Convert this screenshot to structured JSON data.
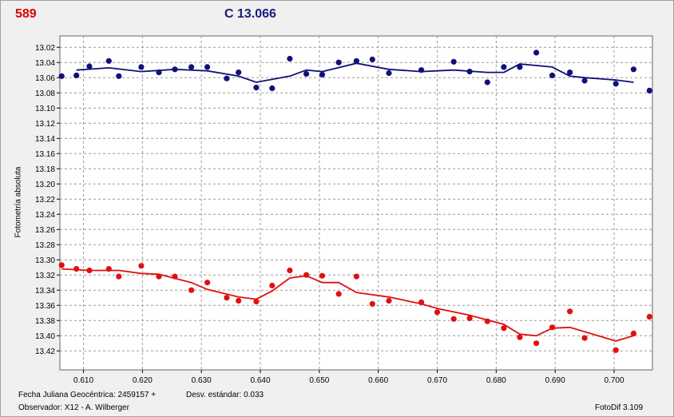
{
  "header": {
    "left_label": "589",
    "center_label": "C 13.066"
  },
  "footer": {
    "jd_label": "Fecha Juliana Geocéntrica: 2459157 +",
    "std_label": "Desv. estándar: 0.033",
    "observer": "Observador: X12 - A. Wilberger",
    "software": "FotoDif 3.109"
  },
  "colors": {
    "red": "#e01010",
    "blue": "#10107a",
    "grid": "#9a9a9a",
    "plot_bg": "#ffffff"
  },
  "chart_data": {
    "type": "scatter",
    "title": "",
    "xlabel": "",
    "ylabel": "Fotometría absoluta",
    "xlim": [
      0.606,
      0.7065
    ],
    "ylim": [
      13.005,
      13.445
    ],
    "y_inverted": true,
    "grid": true,
    "x_ticks": [
      0.61,
      0.62,
      0.63,
      0.64,
      0.65,
      0.66,
      0.67,
      0.68,
      0.69,
      0.7
    ],
    "y_ticks": [
      13.02,
      13.04,
      13.06,
      13.08,
      13.1,
      13.12,
      13.14,
      13.16,
      13.18,
      13.2,
      13.22,
      13.24,
      13.26,
      13.28,
      13.3,
      13.32,
      13.34,
      13.36,
      13.38,
      13.4,
      13.42
    ],
    "series": [
      {
        "color": "#10107a",
        "points": [
          [
            0.6063,
            13.058
          ],
          [
            0.6088,
            13.057
          ],
          [
            0.611,
            13.045
          ],
          [
            0.6143,
            13.038
          ],
          [
            0.616,
            13.058
          ],
          [
            0.6198,
            13.046
          ],
          [
            0.6228,
            13.053
          ],
          [
            0.6255,
            13.049
          ],
          [
            0.6283,
            13.046
          ],
          [
            0.631,
            13.046
          ],
          [
            0.6343,
            13.061
          ],
          [
            0.6363,
            13.053
          ],
          [
            0.6393,
            13.073
          ],
          [
            0.642,
            13.074
          ],
          [
            0.645,
            13.035
          ],
          [
            0.6478,
            13.055
          ],
          [
            0.6505,
            13.056
          ],
          [
            0.6533,
            13.04
          ],
          [
            0.6563,
            13.038
          ],
          [
            0.659,
            13.036
          ],
          [
            0.6618,
            13.054
          ],
          [
            0.6673,
            13.05
          ],
          [
            0.6728,
            13.039
          ],
          [
            0.6755,
            13.052
          ],
          [
            0.6785,
            13.066
          ],
          [
            0.6813,
            13.046
          ],
          [
            0.684,
            13.046
          ],
          [
            0.6868,
            13.027
          ],
          [
            0.6895,
            13.057
          ],
          [
            0.6925,
            13.053
          ],
          [
            0.695,
            13.064
          ],
          [
            0.7003,
            13.068
          ],
          [
            0.7033,
            13.049
          ],
          [
            0.706,
            13.077
          ]
        ],
        "trend": [
          [
            0.6088,
            13.05
          ],
          [
            0.6143,
            13.047
          ],
          [
            0.6198,
            13.052
          ],
          [
            0.6255,
            13.049
          ],
          [
            0.631,
            13.051
          ],
          [
            0.6363,
            13.058
          ],
          [
            0.6393,
            13.066
          ],
          [
            0.645,
            13.058
          ],
          [
            0.6478,
            13.05
          ],
          [
            0.6505,
            13.052
          ],
          [
            0.6563,
            13.041
          ],
          [
            0.6618,
            13.049
          ],
          [
            0.6673,
            13.052
          ],
          [
            0.6728,
            13.05
          ],
          [
            0.6785,
            13.053
          ],
          [
            0.6813,
            13.053
          ],
          [
            0.684,
            13.042
          ],
          [
            0.6895,
            13.046
          ],
          [
            0.6925,
            13.058
          ],
          [
            0.695,
            13.06
          ],
          [
            0.7003,
            13.063
          ],
          [
            0.7033,
            13.066
          ]
        ]
      },
      {
        "color": "#e01010",
        "points": [
          [
            0.6063,
            13.307
          ],
          [
            0.6088,
            13.312
          ],
          [
            0.611,
            13.314
          ],
          [
            0.6143,
            13.312
          ],
          [
            0.616,
            13.322
          ],
          [
            0.6198,
            13.308
          ],
          [
            0.6228,
            13.322
          ],
          [
            0.6255,
            13.322
          ],
          [
            0.6283,
            13.34
          ],
          [
            0.631,
            13.33
          ],
          [
            0.6343,
            13.35
          ],
          [
            0.6363,
            13.354
          ],
          [
            0.6393,
            13.355
          ],
          [
            0.642,
            13.334
          ],
          [
            0.645,
            13.314
          ],
          [
            0.6478,
            13.32
          ],
          [
            0.6505,
            13.321
          ],
          [
            0.6533,
            13.345
          ],
          [
            0.6563,
            13.322
          ],
          [
            0.659,
            13.358
          ],
          [
            0.6618,
            13.354
          ],
          [
            0.6673,
            13.356
          ],
          [
            0.67,
            13.369
          ],
          [
            0.6728,
            13.378
          ],
          [
            0.6755,
            13.377
          ],
          [
            0.6785,
            13.381
          ],
          [
            0.6813,
            13.39
          ],
          [
            0.684,
            13.402
          ],
          [
            0.6868,
            13.41
          ],
          [
            0.6895,
            13.389
          ],
          [
            0.6925,
            13.368
          ],
          [
            0.695,
            13.403
          ],
          [
            0.7003,
            13.419
          ],
          [
            0.7033,
            13.397
          ],
          [
            0.706,
            13.375
          ]
        ],
        "trend": [
          [
            0.6063,
            13.312
          ],
          [
            0.611,
            13.314
          ],
          [
            0.616,
            13.314
          ],
          [
            0.6198,
            13.318
          ],
          [
            0.6228,
            13.319
          ],
          [
            0.6283,
            13.33
          ],
          [
            0.631,
            13.339
          ],
          [
            0.6363,
            13.349
          ],
          [
            0.6393,
            13.352
          ],
          [
            0.642,
            13.341
          ],
          [
            0.645,
            13.324
          ],
          [
            0.6478,
            13.321
          ],
          [
            0.6505,
            13.33
          ],
          [
            0.6533,
            13.33
          ],
          [
            0.6563,
            13.343
          ],
          [
            0.6618,
            13.349
          ],
          [
            0.6673,
            13.358
          ],
          [
            0.67,
            13.364
          ],
          [
            0.6755,
            13.373
          ],
          [
            0.6813,
            13.385
          ],
          [
            0.684,
            13.398
          ],
          [
            0.6868,
            13.4
          ],
          [
            0.6895,
            13.39
          ],
          [
            0.6925,
            13.389
          ],
          [
            0.7003,
            13.407
          ],
          [
            0.7033,
            13.4
          ]
        ]
      }
    ]
  }
}
